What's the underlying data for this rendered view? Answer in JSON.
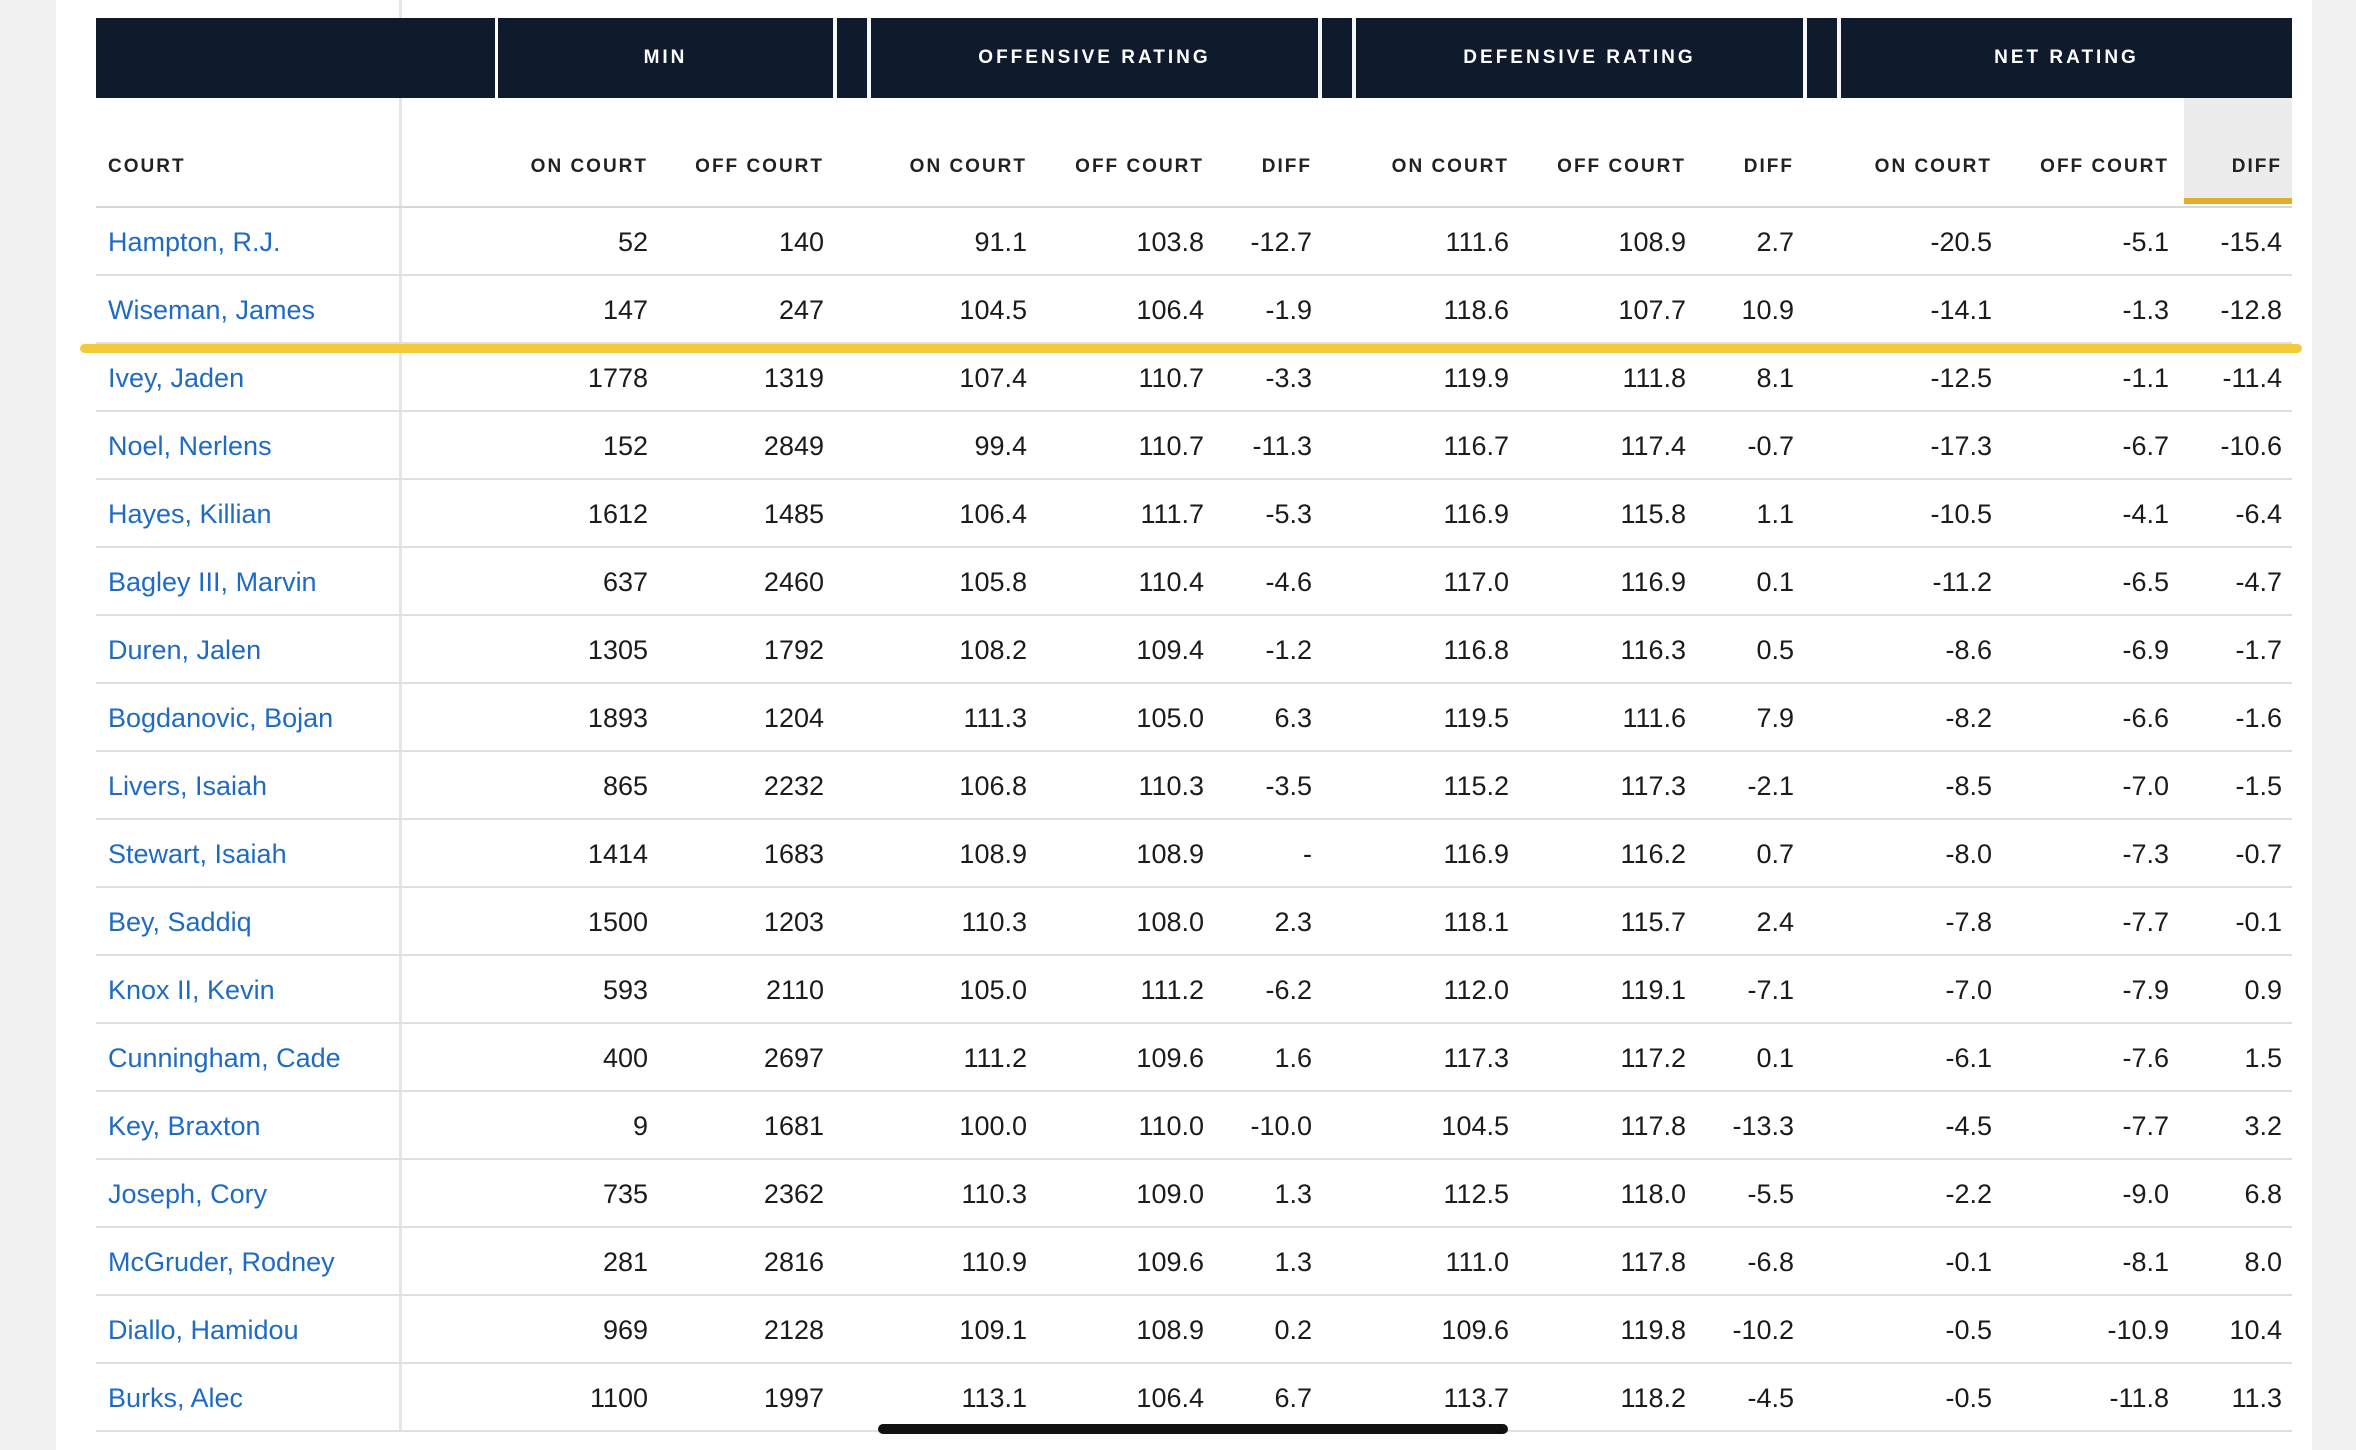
{
  "groups": [
    "MIN",
    "OFFENSIVE RATING",
    "DEFENSIVE RATING",
    "NET RATING"
  ],
  "subheaders": [
    "COURT",
    "ON COURT",
    "OFF COURT",
    "ON COURT",
    "OFF COURT",
    "DIFF",
    "ON COURT",
    "OFF COURT",
    "DIFF",
    "ON COURT",
    "OFF COURT",
    "DIFF"
  ],
  "rows": [
    [
      "Hampton, R.J.",
      "52",
      "140",
      "91.1",
      "103.8",
      "-12.7",
      "111.6",
      "108.9",
      "2.7",
      "-20.5",
      "-5.1",
      "-15.4"
    ],
    [
      "Wiseman, James",
      "147",
      "247",
      "104.5",
      "106.4",
      "-1.9",
      "118.6",
      "107.7",
      "10.9",
      "-14.1",
      "-1.3",
      "-12.8"
    ],
    [
      "Ivey, Jaden",
      "1778",
      "1319",
      "107.4",
      "110.7",
      "-3.3",
      "119.9",
      "111.8",
      "8.1",
      "-12.5",
      "-1.1",
      "-11.4"
    ],
    [
      "Noel, Nerlens",
      "152",
      "2849",
      "99.4",
      "110.7",
      "-11.3",
      "116.7",
      "117.4",
      "-0.7",
      "-17.3",
      "-6.7",
      "-10.6"
    ],
    [
      "Hayes, Killian",
      "1612",
      "1485",
      "106.4",
      "111.7",
      "-5.3",
      "116.9",
      "115.8",
      "1.1",
      "-10.5",
      "-4.1",
      "-6.4"
    ],
    [
      "Bagley III, Marvin",
      "637",
      "2460",
      "105.8",
      "110.4",
      "-4.6",
      "117.0",
      "116.9",
      "0.1",
      "-11.2",
      "-6.5",
      "-4.7"
    ],
    [
      "Duren, Jalen",
      "1305",
      "1792",
      "108.2",
      "109.4",
      "-1.2",
      "116.8",
      "116.3",
      "0.5",
      "-8.6",
      "-6.9",
      "-1.7"
    ],
    [
      "Bogdanovic, Bojan",
      "1893",
      "1204",
      "111.3",
      "105.0",
      "6.3",
      "119.5",
      "111.6",
      "7.9",
      "-8.2",
      "-6.6",
      "-1.6"
    ],
    [
      "Livers, Isaiah",
      "865",
      "2232",
      "106.8",
      "110.3",
      "-3.5",
      "115.2",
      "117.3",
      "-2.1",
      "-8.5",
      "-7.0",
      "-1.5"
    ],
    [
      "Stewart, Isaiah",
      "1414",
      "1683",
      "108.9",
      "108.9",
      "-",
      "116.9",
      "116.2",
      "0.7",
      "-8.0",
      "-7.3",
      "-0.7"
    ],
    [
      "Bey, Saddiq",
      "1500",
      "1203",
      "110.3",
      "108.0",
      "2.3",
      "118.1",
      "115.7",
      "2.4",
      "-7.8",
      "-7.7",
      "-0.1"
    ],
    [
      "Knox II, Kevin",
      "593",
      "2110",
      "105.0",
      "111.2",
      "-6.2",
      "112.0",
      "119.1",
      "-7.1",
      "-7.0",
      "-7.9",
      "0.9"
    ],
    [
      "Cunningham, Cade",
      "400",
      "2697",
      "111.2",
      "109.6",
      "1.6",
      "117.3",
      "117.2",
      "0.1",
      "-6.1",
      "-7.6",
      "1.5"
    ],
    [
      "Key, Braxton",
      "9",
      "1681",
      "100.0",
      "110.0",
      "-10.0",
      "104.5",
      "117.8",
      "-13.3",
      "-4.5",
      "-7.7",
      "3.2"
    ],
    [
      "Joseph, Cory",
      "735",
      "2362",
      "110.3",
      "109.0",
      "1.3",
      "112.5",
      "118.0",
      "-5.5",
      "-2.2",
      "-9.0",
      "6.8"
    ],
    [
      "McGruder, Rodney",
      "281",
      "2816",
      "110.9",
      "109.6",
      "1.3",
      "111.0",
      "117.8",
      "-6.8",
      "-0.1",
      "-8.1",
      "8.0"
    ],
    [
      "Diallo, Hamidou",
      "969",
      "2128",
      "109.1",
      "108.9",
      "0.2",
      "109.6",
      "119.8",
      "-10.2",
      "-0.5",
      "-10.9",
      "10.4"
    ],
    [
      "Burks, Alec",
      "1100",
      "1997",
      "113.1",
      "106.4",
      "6.7",
      "113.7",
      "118.2",
      "-4.5",
      "-0.5",
      "-11.8",
      "11.3"
    ]
  ],
  "colors": {
    "header_bg": "#0f1b2d",
    "link": "#1f6bc4",
    "highlight": "#f3cb3a",
    "sort_underline": "#e0ae2a"
  }
}
